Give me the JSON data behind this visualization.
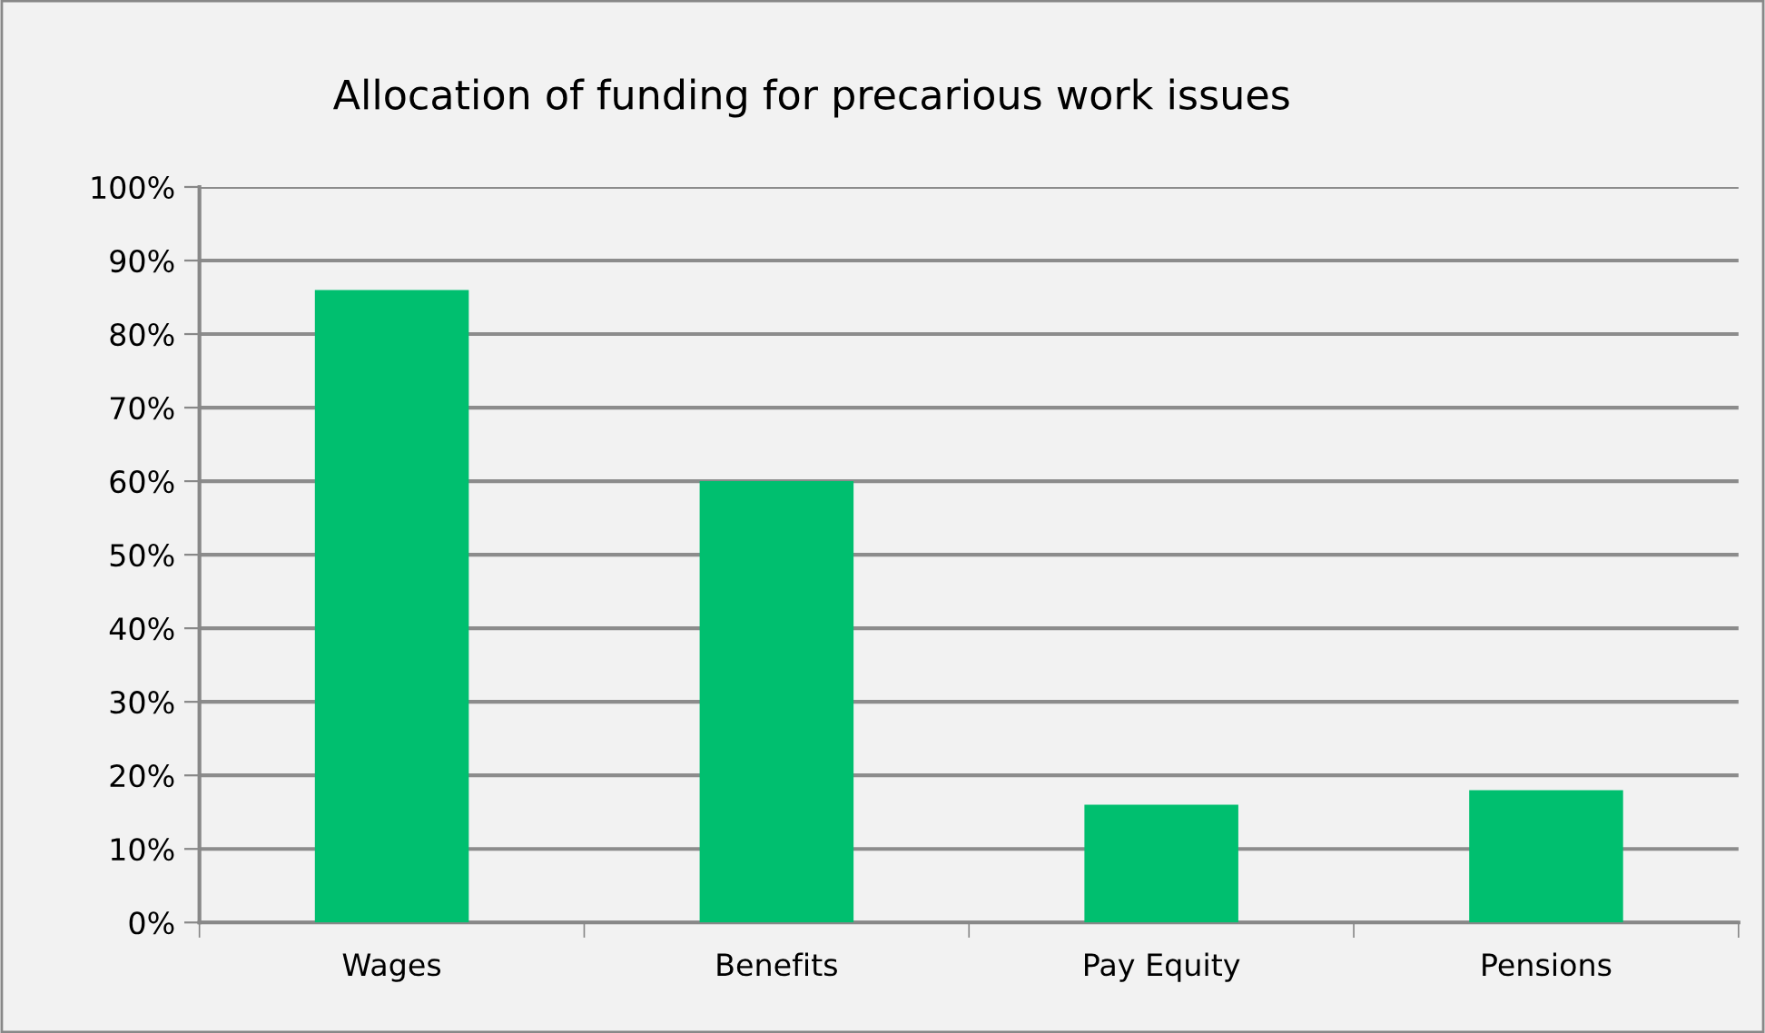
{
  "chart_data": {
    "type": "bar",
    "title": "Allocation of funding for precarious work issues",
    "categories": [
      "Wages",
      "Benefits",
      "Pay Equity",
      "Pensions"
    ],
    "values": [
      86,
      60,
      16,
      18
    ],
    "color": "#00bf6f",
    "ylim": [
      0,
      100
    ],
    "yticks": [
      {
        "value": 0,
        "label": "0%"
      },
      {
        "value": 10,
        "label": "10%"
      },
      {
        "value": 20,
        "label": "20%"
      },
      {
        "value": 30,
        "label": "30%"
      },
      {
        "value": 40,
        "label": "40%"
      },
      {
        "value": 50,
        "label": "50%"
      },
      {
        "value": 60,
        "label": "60%"
      },
      {
        "value": 70,
        "label": "70%"
      },
      {
        "value": 80,
        "label": "80%"
      },
      {
        "value": 90,
        "label": "90%"
      },
      {
        "value": 100,
        "label": "100%"
      }
    ],
    "grid": "y",
    "legend": false
  }
}
